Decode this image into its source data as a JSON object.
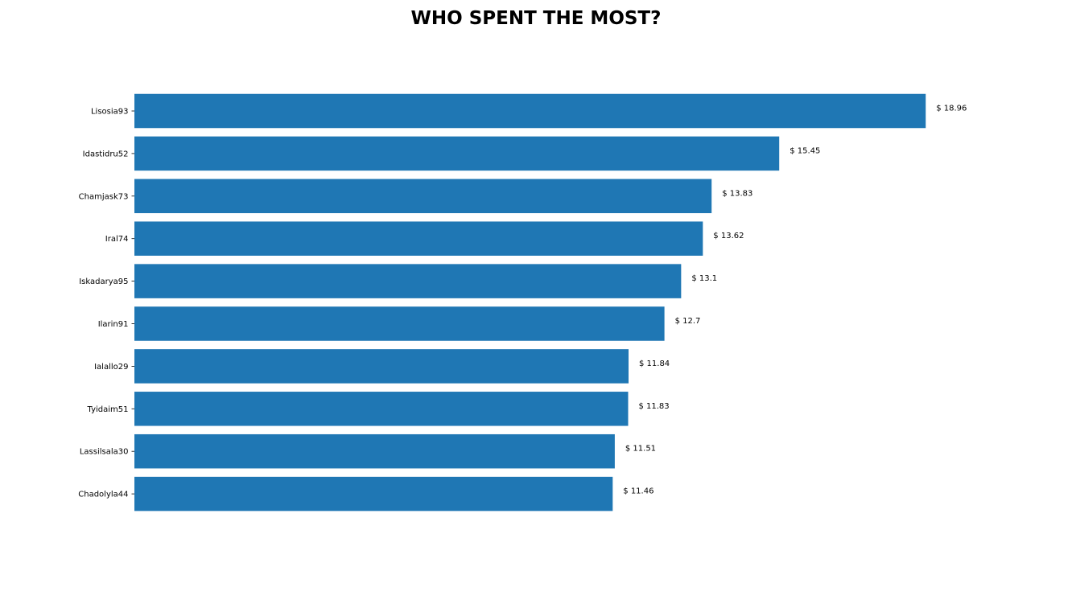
{
  "chart_data": {
    "type": "bar",
    "orientation": "horizontal",
    "title": "WHO SPENT THE MOST?",
    "xlabel": "",
    "ylabel": "",
    "value_prefix": "$ ",
    "xlim": [
      0,
      19.91
    ],
    "grid": false,
    "bar_color": "#1f77b4",
    "categories": [
      "Lisosia93",
      "Idastidru52",
      "Chamjask73",
      "Iral74",
      "Iskadarya95",
      "Ilarin91",
      "Ialallo29",
      "Tyidaim51",
      "Lassilsala30",
      "Chadolyla44"
    ],
    "values": [
      18.96,
      15.45,
      13.83,
      13.62,
      13.1,
      12.7,
      11.84,
      11.83,
      11.51,
      11.46
    ],
    "value_labels": [
      "$ 18.96",
      "$ 15.45",
      "$ 13.83",
      "$ 13.62",
      "$ 13.1",
      "$ 12.7",
      "$ 11.84",
      "$ 11.83",
      "$ 11.51",
      "$ 11.46"
    ]
  }
}
